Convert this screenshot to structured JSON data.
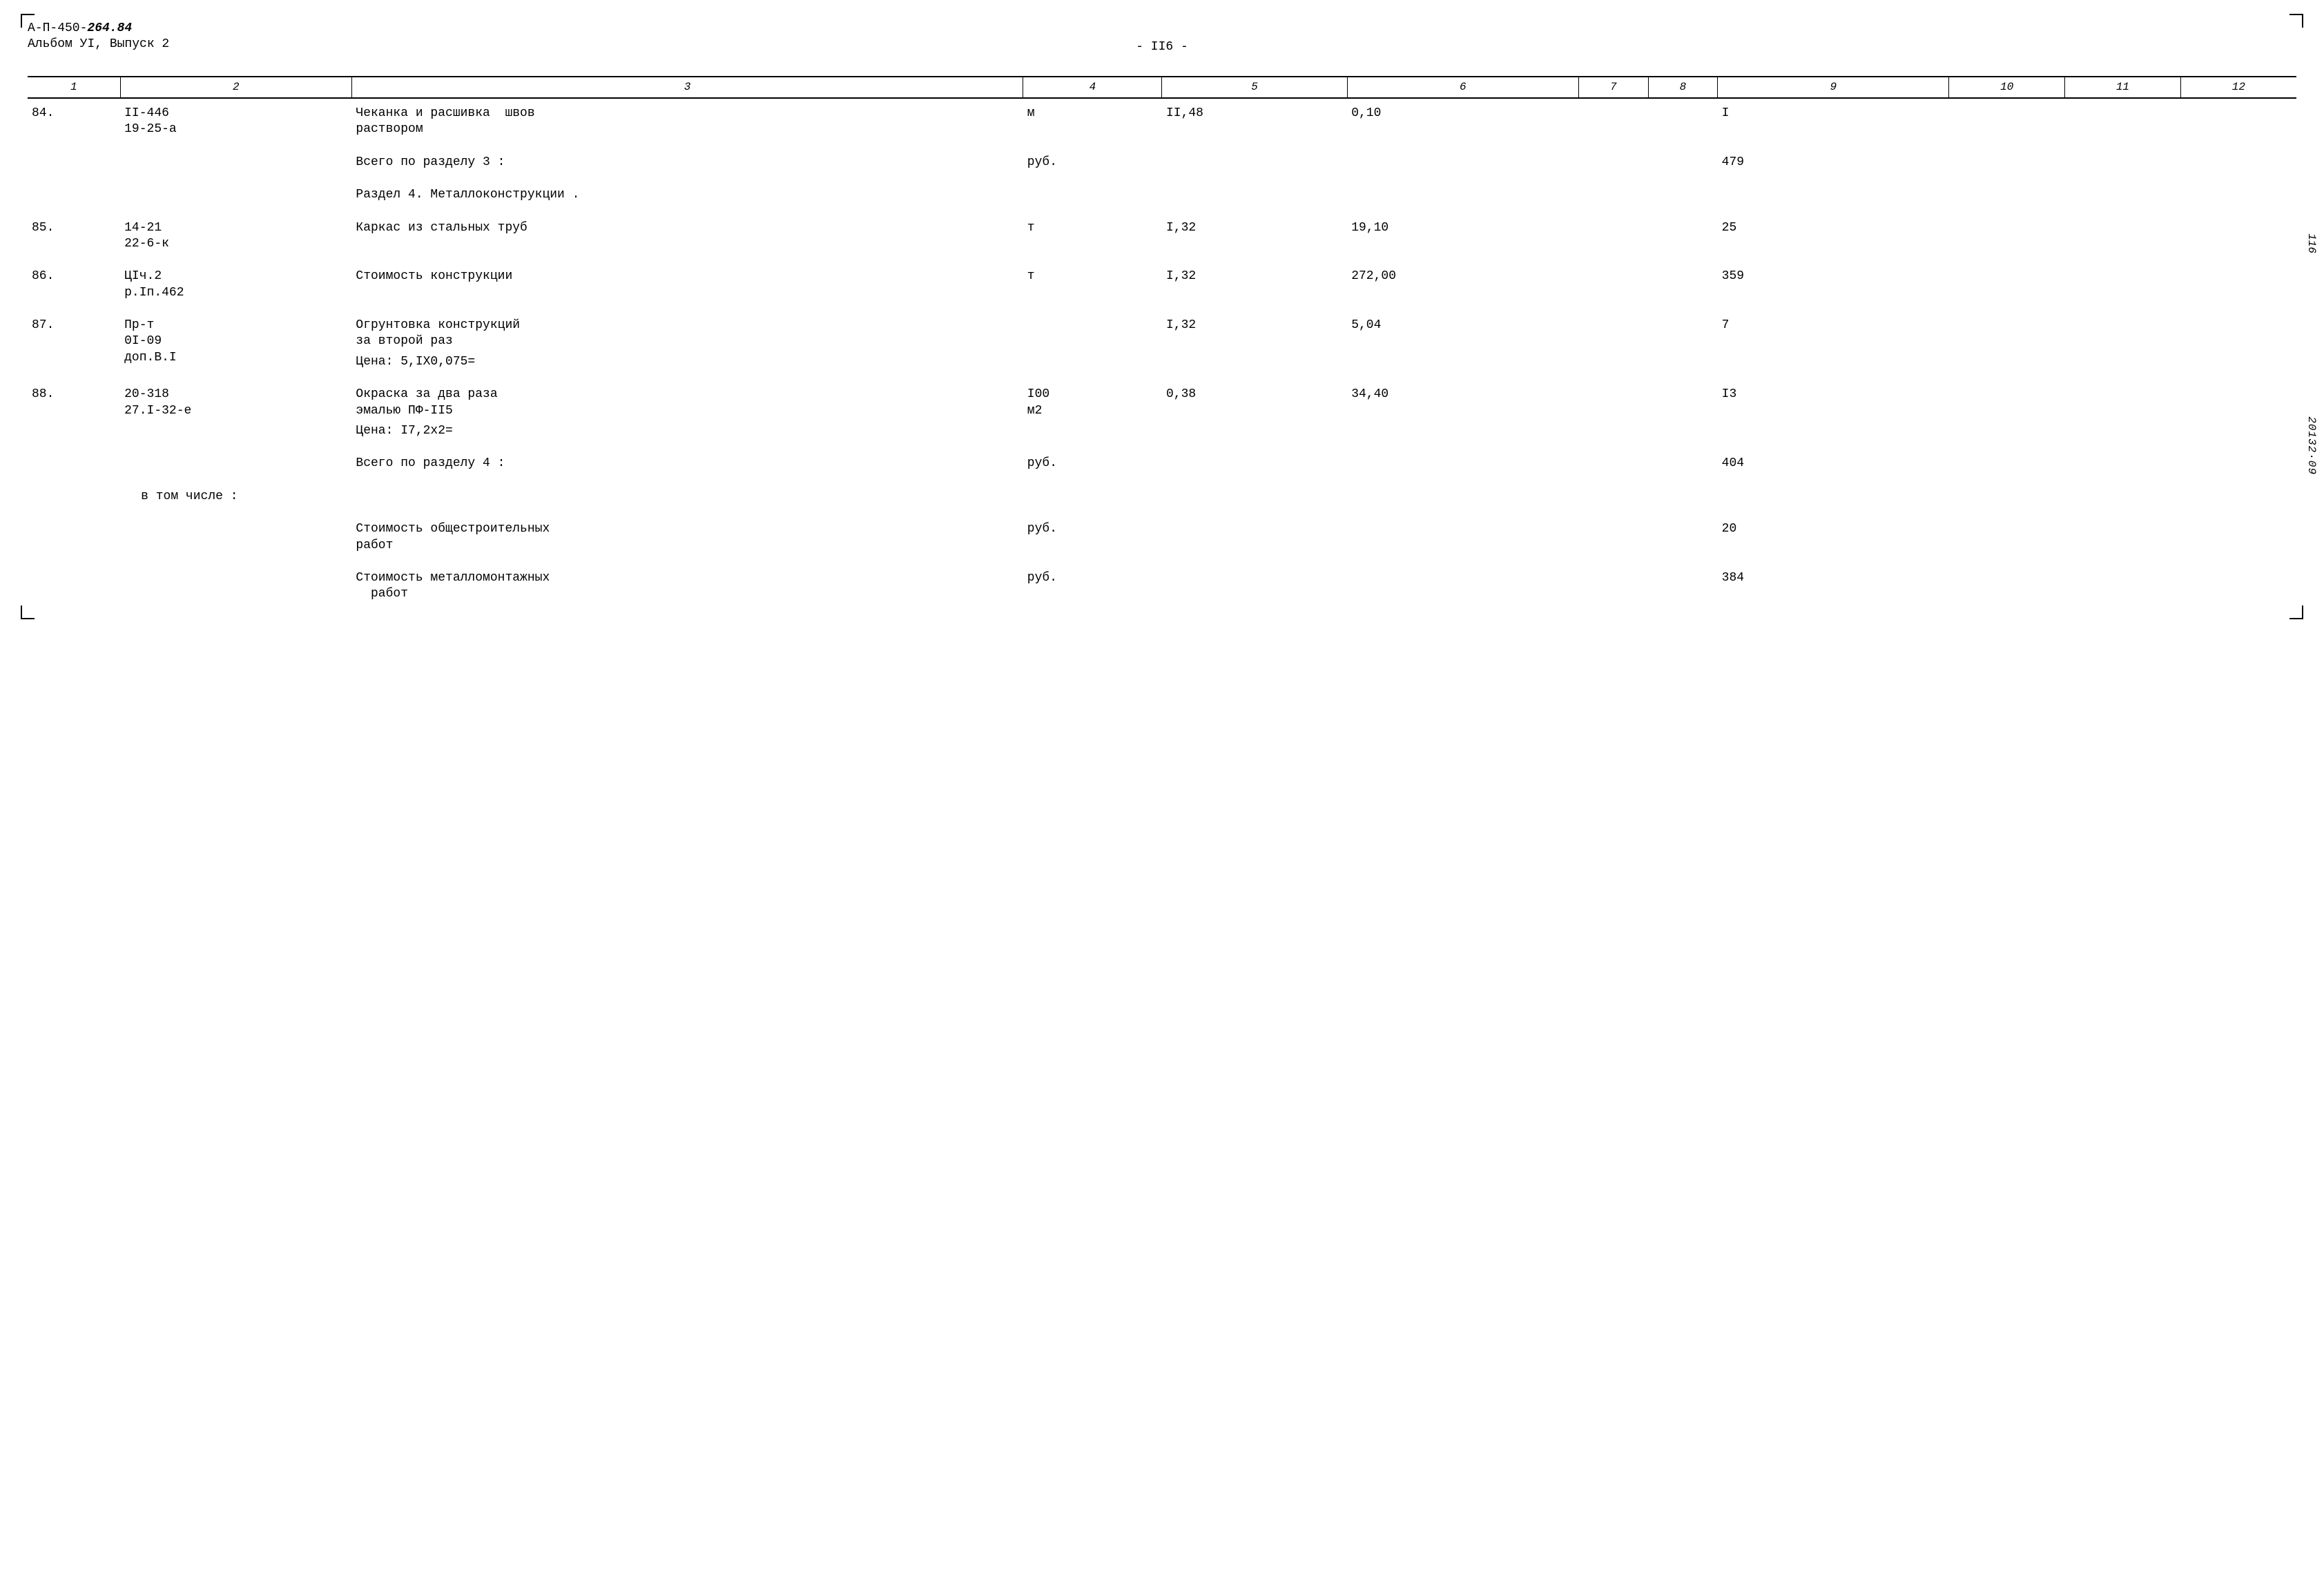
{
  "header": {
    "doc_code_prefix": "А-П-450-",
    "doc_code_bold": "264.84",
    "album_line": "Альбом УI, Выпуск 2",
    "page_marker": "-   II6   -"
  },
  "columns": [
    "1",
    "2",
    "3",
    "4",
    "5",
    "6",
    "7",
    "8",
    "9",
    "10",
    "11",
    "12"
  ],
  "rows": [
    {
      "num": "84.",
      "code": "II-446\n19-25-а",
      "desc": "Чеканка и расшивка  швов\nраствором",
      "unit": "м",
      "qty": "II,48",
      "rate": "0,10",
      "c9": "I"
    }
  ],
  "section3_total": {
    "label": "Всего по разделу 3 :",
    "unit": "руб.",
    "c9": "479"
  },
  "section4_title": "Раздел 4. Металлоконструкции .",
  "rows4": [
    {
      "num": "85.",
      "code": "14-21\n22-6-к",
      "desc": "Каркас из стальных труб",
      "unit": "т",
      "qty": "I,32",
      "rate": "19,10",
      "c9": "25"
    },
    {
      "num": "86.",
      "code": "ЦIч.2\nр.Iп.462",
      "desc": "Стоимость конструкции",
      "unit": "т",
      "qty": "I,32",
      "rate": "272,00",
      "c9": "359"
    },
    {
      "num": "87.",
      "code": "Пр-т\n0I-09\nдоп.В.I",
      "desc": "Огрунтовка конструкций\nза второй раз",
      "price_line": "Цена: 5,IХ0,075=",
      "unit": "",
      "qty": "I,32",
      "rate": "5,04",
      "c9": "7"
    },
    {
      "num": "88.",
      "code": "20-318\n27.I-32-е",
      "desc": "Окраска за два раза\nэмалью ПФ-II5",
      "price_line": "Цена: I7,2х2=",
      "unit": "I00\nм2",
      "qty": "0,38",
      "rate": "34,40",
      "c9": "I3"
    }
  ],
  "section4_total": {
    "label": "Всего по разделу 4 :",
    "unit": "руб.",
    "c9": "404"
  },
  "including_label": "в том числе :",
  "sub_totals": [
    {
      "label": "Стоимость общестроительных\nработ",
      "unit": "руб.",
      "c9": "20"
    },
    {
      "label": "Стоимость металломонтажных\n  работ",
      "unit": "руб.",
      "c9": "384"
    }
  ],
  "side": {
    "page": "116",
    "doc": "20132·09"
  },
  "colors": {
    "text": "#000000",
    "background": "#ffffff",
    "rule": "#000000"
  },
  "typography": {
    "font_family": "Courier New, monospace",
    "body_size_pt": 14,
    "header_italic": true
  }
}
